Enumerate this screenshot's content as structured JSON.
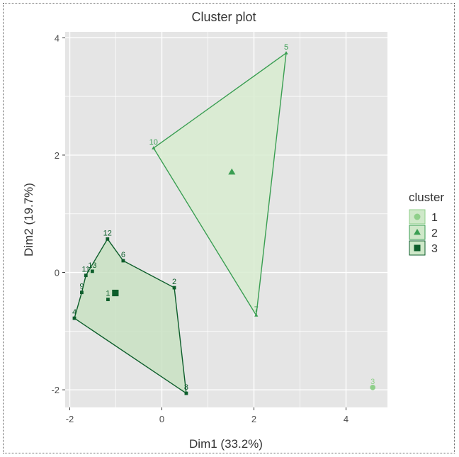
{
  "chart_data": {
    "type": "scatter",
    "title": "Cluster plot",
    "xlabel": "Dim1 (33.2%)",
    "ylabel": "Dim2 (19.7%)",
    "xlim": [
      -2.1,
      4.9
    ],
    "ylim": [
      -2.3,
      4.1
    ],
    "x_ticks": [
      -2,
      0,
      2,
      4
    ],
    "y_ticks": [
      -2,
      0,
      2,
      4
    ],
    "x_tick_labels": [
      "-2",
      "0",
      "2",
      "4"
    ],
    "y_tick_labels": [
      "-2",
      "0",
      "2",
      "4"
    ],
    "grid": true,
    "legend": {
      "title": "cluster",
      "position": "right",
      "entries": [
        {
          "label": "1",
          "shape": "circle",
          "color": "#8fcf8a"
        },
        {
          "label": "2",
          "shape": "triangle",
          "color": "#3a9e52"
        },
        {
          "label": "3",
          "shape": "square",
          "color": "#0d5e2b"
        }
      ]
    },
    "colors": {
      "panel_bg": "#e5e5e5",
      "grid": "#ffffff",
      "cluster1": "#8fcf8a",
      "cluster2": "#3a9e52",
      "cluster3": "#0d5e2b",
      "hull2_fill": "#d8ecd0",
      "hull3_fill": "#c9e2c3"
    },
    "points": [
      {
        "label": "1",
        "cluster": 3,
        "x": -1.17,
        "y": -0.46
      },
      {
        "label": "2",
        "cluster": 3,
        "x": 0.27,
        "y": -0.26
      },
      {
        "label": "3",
        "cluster": 1,
        "x": 4.58,
        "y": -1.96
      },
      {
        "label": "4",
        "cluster": 3,
        "x": -1.9,
        "y": -0.78
      },
      {
        "label": "5",
        "cluster": 2,
        "x": 2.7,
        "y": 3.74
      },
      {
        "label": "6",
        "cluster": 3,
        "x": -0.84,
        "y": 0.2
      },
      {
        "label": "7",
        "cluster": 2,
        "x": 2.05,
        "y": -0.73
      },
      {
        "label": "8",
        "cluster": 3,
        "x": 0.53,
        "y": -2.06
      },
      {
        "label": "9",
        "cluster": 3,
        "x": -1.74,
        "y": -0.34
      },
      {
        "label": "10",
        "cluster": 2,
        "x": -0.18,
        "y": 2.12
      },
      {
        "label": "11",
        "cluster": 3,
        "x": -1.65,
        "y": -0.05
      },
      {
        "label": "12",
        "cluster": 3,
        "x": -1.18,
        "y": 0.57
      },
      {
        "label": "13",
        "cluster": 3,
        "x": -1.51,
        "y": 0.02
      }
    ],
    "hulls": [
      {
        "cluster": 2,
        "vertices": [
          "10",
          "5",
          "7"
        ]
      },
      {
        "cluster": 3,
        "vertices": [
          "12",
          "6",
          "2",
          "8",
          "4",
          "9",
          "11"
        ]
      }
    ],
    "centers": [
      {
        "cluster": 2,
        "x": 1.52,
        "y": 1.71
      },
      {
        "cluster": 3,
        "x": -1.01,
        "y": -0.35
      }
    ]
  }
}
